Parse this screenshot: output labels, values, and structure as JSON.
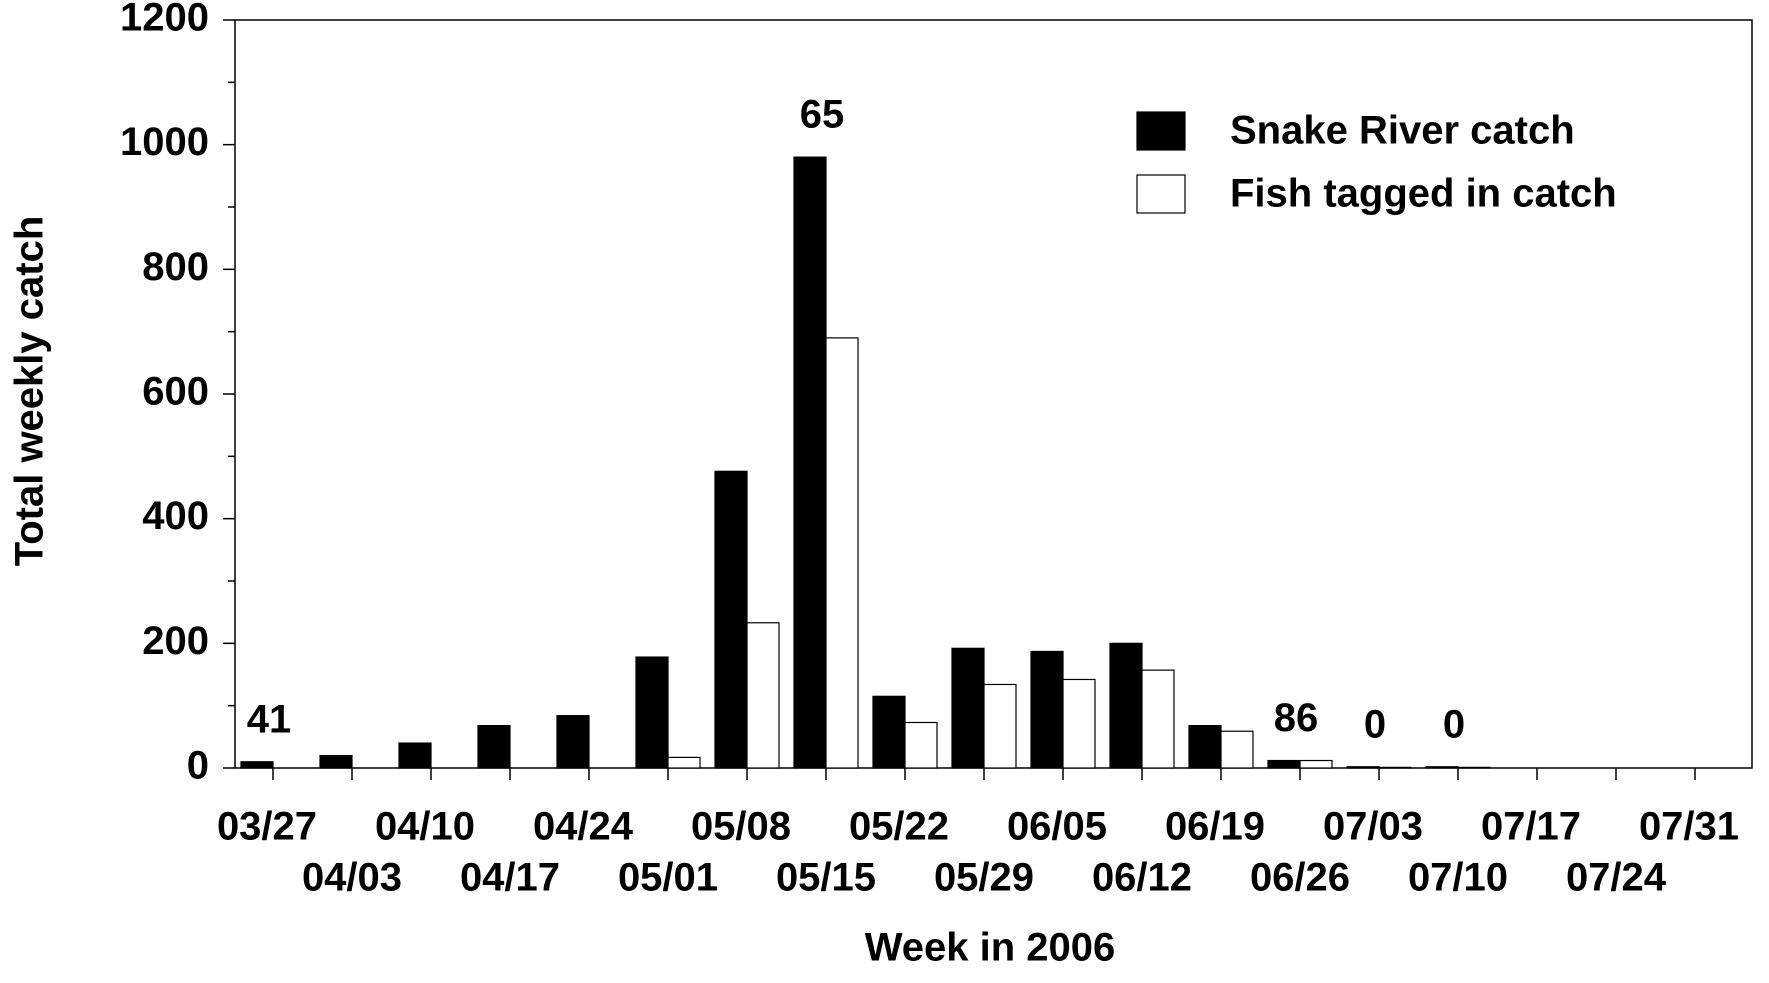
{
  "chart_data": {
    "type": "bar",
    "xlabel": "Week in 2006",
    "ylabel": "Total weekly catch",
    "categories": [
      "03/27",
      "04/03",
      "04/10",
      "04/17",
      "04/24",
      "05/01",
      "05/08",
      "05/15",
      "05/22",
      "05/29",
      "06/05",
      "06/12",
      "06/19",
      "06/26",
      "07/03",
      "07/10",
      "07/17",
      "07/24",
      "07/31"
    ],
    "series": [
      {
        "name": "Snake River catch",
        "color": "#000000",
        "values": [
          10,
          20,
          40,
          68,
          84,
          178,
          476,
          980,
          115,
          192,
          187,
          200,
          68,
          12,
          2,
          2,
          0,
          0,
          0
        ]
      },
      {
        "name": "Fish tagged in catch",
        "color": "#ffffff",
        "values": [
          0,
          0,
          0,
          0,
          0,
          17,
          233,
          690,
          73,
          134,
          142,
          157,
          59,
          12,
          1,
          1,
          0,
          0,
          0
        ]
      }
    ],
    "annotations": [
      {
        "text": "41",
        "category": "03/27"
      },
      {
        "text": "65",
        "category": "05/15"
      },
      {
        "text": "86",
        "category": "06/26"
      },
      {
        "text": "0",
        "category": "07/03"
      },
      {
        "text": "0",
        "category": "07/10"
      }
    ],
    "ylim": [
      0,
      1200
    ],
    "yticks": [
      0,
      200,
      400,
      600,
      800,
      1000,
      1200
    ],
    "yticks_minor": [
      100,
      300,
      500,
      700,
      900,
      1100
    ],
    "legend": "upper right"
  }
}
